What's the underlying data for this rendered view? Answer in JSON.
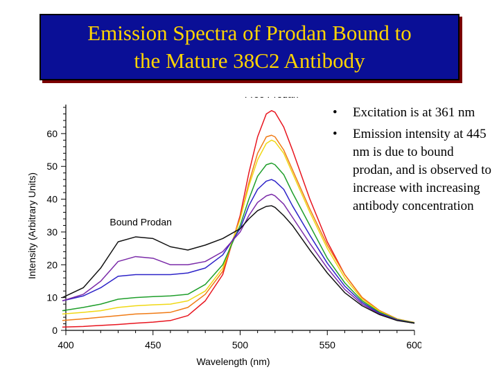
{
  "slide": {
    "title_lines": [
      "Emission Spectra of Prodan Bound to",
      "the Mature 38C2 Antibody"
    ],
    "bullets": [
      "Excitation is at 361 nm",
      "Emission intensity at 445 nm is due to bound prodan, and is observed to increase with increasing antibody concentration"
    ],
    "colors": {
      "title_background": "#0a0f96",
      "title_text": "#ffd400"
    }
  },
  "chart_data": {
    "type": "line",
    "title": "",
    "xlabel": "Wavelength (nm)",
    "ylabel": "Intensity (Arbitrary Units)",
    "xlim": [
      400,
      600
    ],
    "ylim": [
      0,
      68
    ],
    "xticks": [
      400,
      450,
      500,
      550,
      600
    ],
    "yticks": [
      0,
      10,
      20,
      30,
      40,
      50,
      60
    ],
    "grid": false,
    "annotations": [
      {
        "text": "Free Prodan",
        "x": 518,
        "y": 71
      },
      {
        "text": "Bound Prodan",
        "x": 443,
        "y": 32
      }
    ],
    "series": [
      {
        "color": "#e8141e",
        "x": [
          398,
          410,
          420,
          430,
          440,
          450,
          460,
          470,
          480,
          490,
          500,
          505,
          510,
          515,
          518,
          520,
          525,
          530,
          540,
          550,
          560,
          570,
          580,
          590,
          600
        ],
        "y": [
          1,
          1.2,
          1.5,
          1.8,
          2.2,
          2.5,
          3,
          4.5,
          9,
          17,
          35,
          48,
          59,
          66,
          67,
          66.5,
          62,
          55,
          40,
          27,
          17,
          10,
          6,
          3.5,
          2.2
        ]
      },
      {
        "color": "#f07a14",
        "x": [
          398,
          410,
          420,
          430,
          440,
          450,
          460,
          470,
          480,
          490,
          500,
          505,
          510,
          515,
          518,
          520,
          525,
          530,
          540,
          550,
          560,
          570,
          580,
          590,
          600
        ],
        "y": [
          3,
          3.5,
          4,
          4.5,
          5,
          5.2,
          5.5,
          7,
          11,
          18,
          34,
          45,
          54,
          59,
          59.5,
          59,
          55,
          49,
          37,
          26,
          17,
          10,
          6,
          3.5,
          2.4
        ]
      },
      {
        "color": "#f0d814",
        "x": [
          398,
          410,
          420,
          430,
          440,
          450,
          460,
          470,
          480,
          490,
          500,
          505,
          510,
          515,
          518,
          520,
          525,
          530,
          540,
          550,
          560,
          570,
          580,
          590,
          600
        ],
        "y": [
          5,
          5.5,
          6,
          7,
          7.5,
          7.8,
          8,
          9,
          12,
          19,
          34,
          44,
          52,
          57,
          58,
          57.5,
          54,
          48,
          36,
          25,
          16,
          9.5,
          5.8,
          3.4,
          2.3
        ]
      },
      {
        "color": "#1e9e2a",
        "x": [
          398,
          410,
          420,
          430,
          440,
          450,
          460,
          470,
          480,
          490,
          500,
          505,
          510,
          515,
          518,
          520,
          525,
          530,
          540,
          550,
          560,
          570,
          580,
          590,
          600
        ],
        "y": [
          6,
          7,
          8,
          9.5,
          10,
          10.3,
          10.5,
          11,
          14,
          20,
          32,
          40,
          47,
          50.5,
          51,
          50.5,
          47.5,
          42,
          32,
          22,
          14.5,
          9,
          5.5,
          3.3,
          2.3
        ]
      },
      {
        "color": "#2c22c8",
        "x": [
          398,
          410,
          420,
          430,
          440,
          450,
          460,
          470,
          480,
          490,
          500,
          505,
          510,
          515,
          518,
          520,
          525,
          530,
          540,
          550,
          560,
          570,
          580,
          590,
          600
        ],
        "y": [
          9,
          10.5,
          13,
          16.5,
          17,
          17,
          17,
          17.5,
          19,
          23,
          31,
          38,
          43,
          45.5,
          46,
          45.5,
          43,
          38,
          29,
          20.5,
          13.5,
          8.5,
          5.2,
          3.2,
          2.2
        ]
      },
      {
        "color": "#7a2aa8",
        "x": [
          398,
          410,
          420,
          430,
          440,
          450,
          460,
          470,
          480,
          490,
          500,
          505,
          510,
          515,
          518,
          520,
          525,
          530,
          540,
          550,
          560,
          570,
          580,
          590,
          600
        ],
        "y": [
          9,
          11,
          15,
          21,
          22.5,
          22,
          20,
          20,
          21,
          24,
          30,
          35,
          39,
          41,
          41.5,
          41,
          38.5,
          34.5,
          26.5,
          19,
          12.5,
          8,
          5,
          3.1,
          2.2
        ]
      },
      {
        "color": "#111111",
        "x": [
          398,
          410,
          420,
          430,
          440,
          450,
          460,
          470,
          480,
          490,
          500,
          505,
          510,
          515,
          518,
          520,
          525,
          530,
          540,
          550,
          560,
          570,
          580,
          590,
          600
        ],
        "y": [
          10,
          13,
          19,
          27,
          28.5,
          28,
          25.5,
          24.5,
          26,
          28,
          31,
          34,
          36.5,
          37.8,
          38,
          37.5,
          35,
          32,
          24.5,
          17.5,
          11.5,
          7.5,
          4.8,
          3,
          2.2
        ]
      }
    ]
  }
}
